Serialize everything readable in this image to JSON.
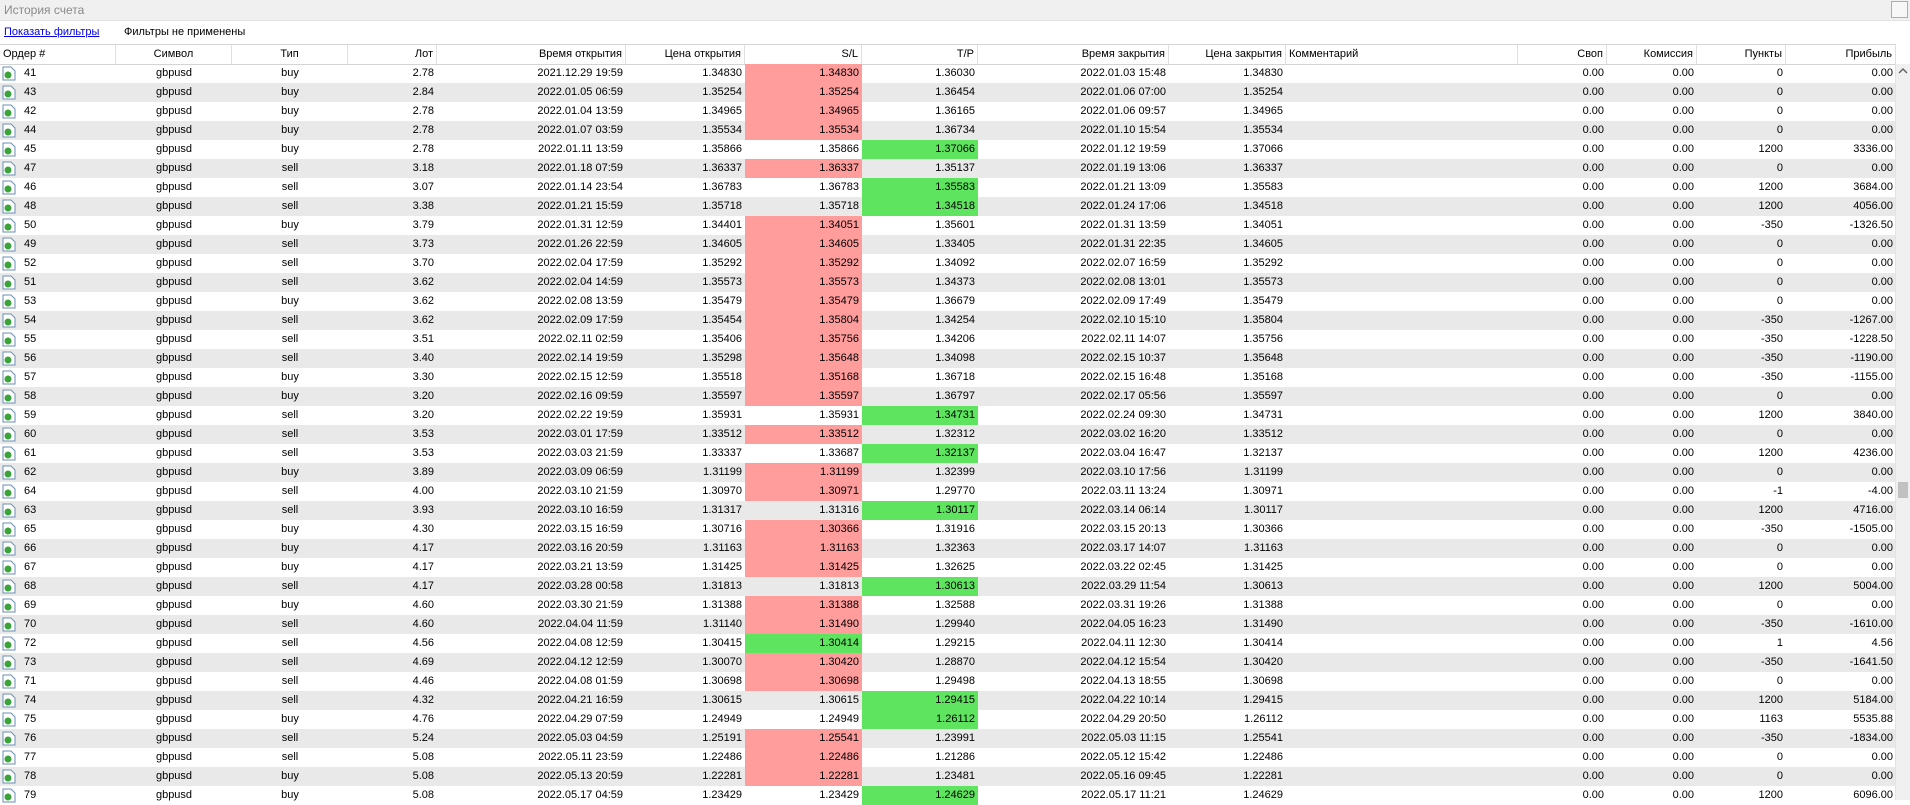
{
  "window": {
    "title": "История счета"
  },
  "filters": {
    "link_label": "Показать фильтры",
    "status": "Фильтры не применены"
  },
  "columns": [
    "Ордер #",
    "Символ",
    "Тип",
    "Лот",
    "Время открытия",
    "Цена открытия",
    "S/L",
    "T/P",
    "Время закрытия",
    "Цена закрытия",
    "Комментарий",
    "Своп",
    "Комиссия",
    "Пункты",
    "Прибыль"
  ],
  "colors": {
    "sl_red": "#ff9d9d",
    "tp_green": "#5fe45f",
    "row_alt": "#e9e9e9",
    "link": "#0000ee"
  },
  "icons": {
    "order_row": "order-document-icon"
  },
  "rows": [
    {
      "order": "41",
      "symbol": "gbpusd",
      "type": "buy",
      "lot": "2.78",
      "open_time": "2021.12.29 19:59",
      "open_price": "1.34830",
      "sl": "1.34830",
      "tp": "1.36030",
      "close_time": "2022.01.03 15:48",
      "close_price": "1.34830",
      "comment": "",
      "swap": "0.00",
      "commission": "0.00",
      "points": "0",
      "profit": "0.00",
      "hl": "sl-red"
    },
    {
      "order": "43",
      "symbol": "gbpusd",
      "type": "buy",
      "lot": "2.84",
      "open_time": "2022.01.05 06:59",
      "open_price": "1.35254",
      "sl": "1.35254",
      "tp": "1.36454",
      "close_time": "2022.01.06 07:00",
      "close_price": "1.35254",
      "comment": "",
      "swap": "0.00",
      "commission": "0.00",
      "points": "0",
      "profit": "0.00",
      "hl": "sl-red"
    },
    {
      "order": "42",
      "symbol": "gbpusd",
      "type": "buy",
      "lot": "2.78",
      "open_time": "2022.01.04 13:59",
      "open_price": "1.34965",
      "sl": "1.34965",
      "tp": "1.36165",
      "close_time": "2022.01.06 09:57",
      "close_price": "1.34965",
      "comment": "",
      "swap": "0.00",
      "commission": "0.00",
      "points": "0",
      "profit": "0.00",
      "hl": "sl-red"
    },
    {
      "order": "44",
      "symbol": "gbpusd",
      "type": "buy",
      "lot": "2.78",
      "open_time": "2022.01.07 03:59",
      "open_price": "1.35534",
      "sl": "1.35534",
      "tp": "1.36734",
      "close_time": "2022.01.10 15:54",
      "close_price": "1.35534",
      "comment": "",
      "swap": "0.00",
      "commission": "0.00",
      "points": "0",
      "profit": "0.00",
      "hl": "sl-red"
    },
    {
      "order": "45",
      "symbol": "gbpusd",
      "type": "buy",
      "lot": "2.78",
      "open_time": "2022.01.11 13:59",
      "open_price": "1.35866",
      "sl": "1.35866",
      "tp": "1.37066",
      "close_time": "2022.01.12 19:59",
      "close_price": "1.37066",
      "comment": "",
      "swap": "0.00",
      "commission": "0.00",
      "points": "1200",
      "profit": "3336.00",
      "hl": "tp-green"
    },
    {
      "order": "47",
      "symbol": "gbpusd",
      "type": "sell",
      "lot": "3.18",
      "open_time": "2022.01.18 07:59",
      "open_price": "1.36337",
      "sl": "1.36337",
      "tp": "1.35137",
      "close_time": "2022.01.19 13:06",
      "close_price": "1.36337",
      "comment": "",
      "swap": "0.00",
      "commission": "0.00",
      "points": "0",
      "profit": "0.00",
      "hl": "sl-red"
    },
    {
      "order": "46",
      "symbol": "gbpusd",
      "type": "sell",
      "lot": "3.07",
      "open_time": "2022.01.14 23:54",
      "open_price": "1.36783",
      "sl": "1.36783",
      "tp": "1.35583",
      "close_time": "2022.01.21 13:09",
      "close_price": "1.35583",
      "comment": "",
      "swap": "0.00",
      "commission": "0.00",
      "points": "1200",
      "profit": "3684.00",
      "hl": "tp-green"
    },
    {
      "order": "48",
      "symbol": "gbpusd",
      "type": "sell",
      "lot": "3.38",
      "open_time": "2022.01.21 15:59",
      "open_price": "1.35718",
      "sl": "1.35718",
      "tp": "1.34518",
      "close_time": "2022.01.24 17:06",
      "close_price": "1.34518",
      "comment": "",
      "swap": "0.00",
      "commission": "0.00",
      "points": "1200",
      "profit": "4056.00",
      "hl": "tp-green"
    },
    {
      "order": "50",
      "symbol": "gbpusd",
      "type": "buy",
      "lot": "3.79",
      "open_time": "2022.01.31 12:59",
      "open_price": "1.34401",
      "sl": "1.34051",
      "tp": "1.35601",
      "close_time": "2022.01.31 13:59",
      "close_price": "1.34051",
      "comment": "",
      "swap": "0.00",
      "commission": "0.00",
      "points": "-350",
      "profit": "-1326.50",
      "hl": "sl-red"
    },
    {
      "order": "49",
      "symbol": "gbpusd",
      "type": "sell",
      "lot": "3.73",
      "open_time": "2022.01.26 22:59",
      "open_price": "1.34605",
      "sl": "1.34605",
      "tp": "1.33405",
      "close_time": "2022.01.31 22:35",
      "close_price": "1.34605",
      "comment": "",
      "swap": "0.00",
      "commission": "0.00",
      "points": "0",
      "profit": "0.00",
      "hl": "sl-red"
    },
    {
      "order": "52",
      "symbol": "gbpusd",
      "type": "sell",
      "lot": "3.70",
      "open_time": "2022.02.04 17:59",
      "open_price": "1.35292",
      "sl": "1.35292",
      "tp": "1.34092",
      "close_time": "2022.02.07 16:59",
      "close_price": "1.35292",
      "comment": "",
      "swap": "0.00",
      "commission": "0.00",
      "points": "0",
      "profit": "0.00",
      "hl": "sl-red"
    },
    {
      "order": "51",
      "symbol": "gbpusd",
      "type": "sell",
      "lot": "3.62",
      "open_time": "2022.02.04 14:59",
      "open_price": "1.35573",
      "sl": "1.35573",
      "tp": "1.34373",
      "close_time": "2022.02.08 13:01",
      "close_price": "1.35573",
      "comment": "",
      "swap": "0.00",
      "commission": "0.00",
      "points": "0",
      "profit": "0.00",
      "hl": "sl-red"
    },
    {
      "order": "53",
      "symbol": "gbpusd",
      "type": "buy",
      "lot": "3.62",
      "open_time": "2022.02.08 13:59",
      "open_price": "1.35479",
      "sl": "1.35479",
      "tp": "1.36679",
      "close_time": "2022.02.09 17:49",
      "close_price": "1.35479",
      "comment": "",
      "swap": "0.00",
      "commission": "0.00",
      "points": "0",
      "profit": "0.00",
      "hl": "sl-red"
    },
    {
      "order": "54",
      "symbol": "gbpusd",
      "type": "sell",
      "lot": "3.62",
      "open_time": "2022.02.09 17:59",
      "open_price": "1.35454",
      "sl": "1.35804",
      "tp": "1.34254",
      "close_time": "2022.02.10 15:10",
      "close_price": "1.35804",
      "comment": "",
      "swap": "0.00",
      "commission": "0.00",
      "points": "-350",
      "profit": "-1267.00",
      "hl": "sl-red"
    },
    {
      "order": "55",
      "symbol": "gbpusd",
      "type": "sell",
      "lot": "3.51",
      "open_time": "2022.02.11 02:59",
      "open_price": "1.35406",
      "sl": "1.35756",
      "tp": "1.34206",
      "close_time": "2022.02.11 14:07",
      "close_price": "1.35756",
      "comment": "",
      "swap": "0.00",
      "commission": "0.00",
      "points": "-350",
      "profit": "-1228.50",
      "hl": "sl-red"
    },
    {
      "order": "56",
      "symbol": "gbpusd",
      "type": "sell",
      "lot": "3.40",
      "open_time": "2022.02.14 19:59",
      "open_price": "1.35298",
      "sl": "1.35648",
      "tp": "1.34098",
      "close_time": "2022.02.15 10:37",
      "close_price": "1.35648",
      "comment": "",
      "swap": "0.00",
      "commission": "0.00",
      "points": "-350",
      "profit": "-1190.00",
      "hl": "sl-red"
    },
    {
      "order": "57",
      "symbol": "gbpusd",
      "type": "buy",
      "lot": "3.30",
      "open_time": "2022.02.15 12:59",
      "open_price": "1.35518",
      "sl": "1.35168",
      "tp": "1.36718",
      "close_time": "2022.02.15 16:48",
      "close_price": "1.35168",
      "comment": "",
      "swap": "0.00",
      "commission": "0.00",
      "points": "-350",
      "profit": "-1155.00",
      "hl": "sl-red"
    },
    {
      "order": "58",
      "symbol": "gbpusd",
      "type": "buy",
      "lot": "3.20",
      "open_time": "2022.02.16 09:59",
      "open_price": "1.35597",
      "sl": "1.35597",
      "tp": "1.36797",
      "close_time": "2022.02.17 05:56",
      "close_price": "1.35597",
      "comment": "",
      "swap": "0.00",
      "commission": "0.00",
      "points": "0",
      "profit": "0.00",
      "hl": "sl-red"
    },
    {
      "order": "59",
      "symbol": "gbpusd",
      "type": "sell",
      "lot": "3.20",
      "open_time": "2022.02.22 19:59",
      "open_price": "1.35931",
      "sl": "1.35931",
      "tp": "1.34731",
      "close_time": "2022.02.24 09:30",
      "close_price": "1.34731",
      "comment": "",
      "swap": "0.00",
      "commission": "0.00",
      "points": "1200",
      "profit": "3840.00",
      "hl": "tp-green"
    },
    {
      "order": "60",
      "symbol": "gbpusd",
      "type": "sell",
      "lot": "3.53",
      "open_time": "2022.03.01 17:59",
      "open_price": "1.33512",
      "sl": "1.33512",
      "tp": "1.32312",
      "close_time": "2022.03.02 16:20",
      "close_price": "1.33512",
      "comment": "",
      "swap": "0.00",
      "commission": "0.00",
      "points": "0",
      "profit": "0.00",
      "hl": "sl-red"
    },
    {
      "order": "61",
      "symbol": "gbpusd",
      "type": "sell",
      "lot": "3.53",
      "open_time": "2022.03.03 21:59",
      "open_price": "1.33337",
      "sl": "1.33687",
      "tp": "1.32137",
      "close_time": "2022.03.04 16:47",
      "close_price": "1.32137",
      "comment": "",
      "swap": "0.00",
      "commission": "0.00",
      "points": "1200",
      "profit": "4236.00",
      "hl": "tp-green"
    },
    {
      "order": "62",
      "symbol": "gbpusd",
      "type": "buy",
      "lot": "3.89",
      "open_time": "2022.03.09 06:59",
      "open_price": "1.31199",
      "sl": "1.31199",
      "tp": "1.32399",
      "close_time": "2022.03.10 17:56",
      "close_price": "1.31199",
      "comment": "",
      "swap": "0.00",
      "commission": "0.00",
      "points": "0",
      "profit": "0.00",
      "hl": "sl-red"
    },
    {
      "order": "64",
      "symbol": "gbpusd",
      "type": "sell",
      "lot": "4.00",
      "open_time": "2022.03.10 21:59",
      "open_price": "1.30970",
      "sl": "1.30971",
      "tp": "1.29770",
      "close_time": "2022.03.11 13:24",
      "close_price": "1.30971",
      "comment": "",
      "swap": "0.00",
      "commission": "0.00",
      "points": "-1",
      "profit": "-4.00",
      "hl": "sl-red"
    },
    {
      "order": "63",
      "symbol": "gbpusd",
      "type": "sell",
      "lot": "3.93",
      "open_time": "2022.03.10 16:59",
      "open_price": "1.31317",
      "sl": "1.31316",
      "tp": "1.30117",
      "close_time": "2022.03.14 06:14",
      "close_price": "1.30117",
      "comment": "",
      "swap": "0.00",
      "commission": "0.00",
      "points": "1200",
      "profit": "4716.00",
      "hl": "tp-green"
    },
    {
      "order": "65",
      "symbol": "gbpusd",
      "type": "buy",
      "lot": "4.30",
      "open_time": "2022.03.15 16:59",
      "open_price": "1.30716",
      "sl": "1.30366",
      "tp": "1.31916",
      "close_time": "2022.03.15 20:13",
      "close_price": "1.30366",
      "comment": "",
      "swap": "0.00",
      "commission": "0.00",
      "points": "-350",
      "profit": "-1505.00",
      "hl": "sl-red"
    },
    {
      "order": "66",
      "symbol": "gbpusd",
      "type": "buy",
      "lot": "4.17",
      "open_time": "2022.03.16 20:59",
      "open_price": "1.31163",
      "sl": "1.31163",
      "tp": "1.32363",
      "close_time": "2022.03.17 14:07",
      "close_price": "1.31163",
      "comment": "",
      "swap": "0.00",
      "commission": "0.00",
      "points": "0",
      "profit": "0.00",
      "hl": "sl-red"
    },
    {
      "order": "67",
      "symbol": "gbpusd",
      "type": "buy",
      "lot": "4.17",
      "open_time": "2022.03.21 13:59",
      "open_price": "1.31425",
      "sl": "1.31425",
      "tp": "1.32625",
      "close_time": "2022.03.22 02:45",
      "close_price": "1.31425",
      "comment": "",
      "swap": "0.00",
      "commission": "0.00",
      "points": "0",
      "profit": "0.00",
      "hl": "sl-red"
    },
    {
      "order": "68",
      "symbol": "gbpusd",
      "type": "sell",
      "lot": "4.17",
      "open_time": "2022.03.28 00:58",
      "open_price": "1.31813",
      "sl": "1.31813",
      "tp": "1.30613",
      "close_time": "2022.03.29 11:54",
      "close_price": "1.30613",
      "comment": "",
      "swap": "0.00",
      "commission": "0.00",
      "points": "1200",
      "profit": "5004.00",
      "hl": "tp-green"
    },
    {
      "order": "69",
      "symbol": "gbpusd",
      "type": "buy",
      "lot": "4.60",
      "open_time": "2022.03.30 21:59",
      "open_price": "1.31388",
      "sl": "1.31388",
      "tp": "1.32588",
      "close_time": "2022.03.31 19:26",
      "close_price": "1.31388",
      "comment": "",
      "swap": "0.00",
      "commission": "0.00",
      "points": "0",
      "profit": "0.00",
      "hl": "sl-red"
    },
    {
      "order": "70",
      "symbol": "gbpusd",
      "type": "sell",
      "lot": "4.60",
      "open_time": "2022.04.04 11:59",
      "open_price": "1.31140",
      "sl": "1.31490",
      "tp": "1.29940",
      "close_time": "2022.04.05 16:23",
      "close_price": "1.31490",
      "comment": "",
      "swap": "0.00",
      "commission": "0.00",
      "points": "-350",
      "profit": "-1610.00",
      "hl": "sl-red"
    },
    {
      "order": "72",
      "symbol": "gbpusd",
      "type": "sell",
      "lot": "4.56",
      "open_time": "2022.04.08 12:59",
      "open_price": "1.30415",
      "sl": "1.30414",
      "tp": "1.29215",
      "close_time": "2022.04.11 12:30",
      "close_price": "1.30414",
      "comment": "",
      "swap": "0.00",
      "commission": "0.00",
      "points": "1",
      "profit": "4.56",
      "hl": "sl-green"
    },
    {
      "order": "73",
      "symbol": "gbpusd",
      "type": "sell",
      "lot": "4.69",
      "open_time": "2022.04.12 12:59",
      "open_price": "1.30070",
      "sl": "1.30420",
      "tp": "1.28870",
      "close_time": "2022.04.12 15:54",
      "close_price": "1.30420",
      "comment": "",
      "swap": "0.00",
      "commission": "0.00",
      "points": "-350",
      "profit": "-1641.50",
      "hl": "sl-red"
    },
    {
      "order": "71",
      "symbol": "gbpusd",
      "type": "sell",
      "lot": "4.46",
      "open_time": "2022.04.08 01:59",
      "open_price": "1.30698",
      "sl": "1.30698",
      "tp": "1.29498",
      "close_time": "2022.04.13 18:55",
      "close_price": "1.30698",
      "comment": "",
      "swap": "0.00",
      "commission": "0.00",
      "points": "0",
      "profit": "0.00",
      "hl": "sl-red"
    },
    {
      "order": "74",
      "symbol": "gbpusd",
      "type": "sell",
      "lot": "4.32",
      "open_time": "2022.04.21 16:59",
      "open_price": "1.30615",
      "sl": "1.30615",
      "tp": "1.29415",
      "close_time": "2022.04.22 10:14",
      "close_price": "1.29415",
      "comment": "",
      "swap": "0.00",
      "commission": "0.00",
      "points": "1200",
      "profit": "5184.00",
      "hl": "tp-green"
    },
    {
      "order": "75",
      "symbol": "gbpusd",
      "type": "buy",
      "lot": "4.76",
      "open_time": "2022.04.29 07:59",
      "open_price": "1.24949",
      "sl": "1.24949",
      "tp": "1.26112",
      "close_time": "2022.04.29 20:50",
      "close_price": "1.26112",
      "comment": "",
      "swap": "0.00",
      "commission": "0.00",
      "points": "1163",
      "profit": "5535.88",
      "hl": "tp-green"
    },
    {
      "order": "76",
      "symbol": "gbpusd",
      "type": "sell",
      "lot": "5.24",
      "open_time": "2022.05.03 04:59",
      "open_price": "1.25191",
      "sl": "1.25541",
      "tp": "1.23991",
      "close_time": "2022.05.03 11:15",
      "close_price": "1.25541",
      "comment": "",
      "swap": "0.00",
      "commission": "0.00",
      "points": "-350",
      "profit": "-1834.00",
      "hl": "sl-red"
    },
    {
      "order": "77",
      "symbol": "gbpusd",
      "type": "sell",
      "lot": "5.08",
      "open_time": "2022.05.11 23:59",
      "open_price": "1.22486",
      "sl": "1.22486",
      "tp": "1.21286",
      "close_time": "2022.05.12 15:42",
      "close_price": "1.22486",
      "comment": "",
      "swap": "0.00",
      "commission": "0.00",
      "points": "0",
      "profit": "0.00",
      "hl": "sl-red"
    },
    {
      "order": "78",
      "symbol": "gbpusd",
      "type": "buy",
      "lot": "5.08",
      "open_time": "2022.05.13 20:59",
      "open_price": "1.22281",
      "sl": "1.22281",
      "tp": "1.23481",
      "close_time": "2022.05.16 09:45",
      "close_price": "1.22281",
      "comment": "",
      "swap": "0.00",
      "commission": "0.00",
      "points": "0",
      "profit": "0.00",
      "hl": "sl-red"
    },
    {
      "order": "79",
      "symbol": "gbpusd",
      "type": "buy",
      "lot": "5.08",
      "open_time": "2022.05.17 04:59",
      "open_price": "1.23429",
      "sl": "1.23429",
      "tp": "1.24629",
      "close_time": "2022.05.17 11:21",
      "close_price": "1.24629",
      "comment": "",
      "swap": "0.00",
      "commission": "0.00",
      "points": "1200",
      "profit": "6096.00",
      "hl": "tp-green"
    }
  ]
}
